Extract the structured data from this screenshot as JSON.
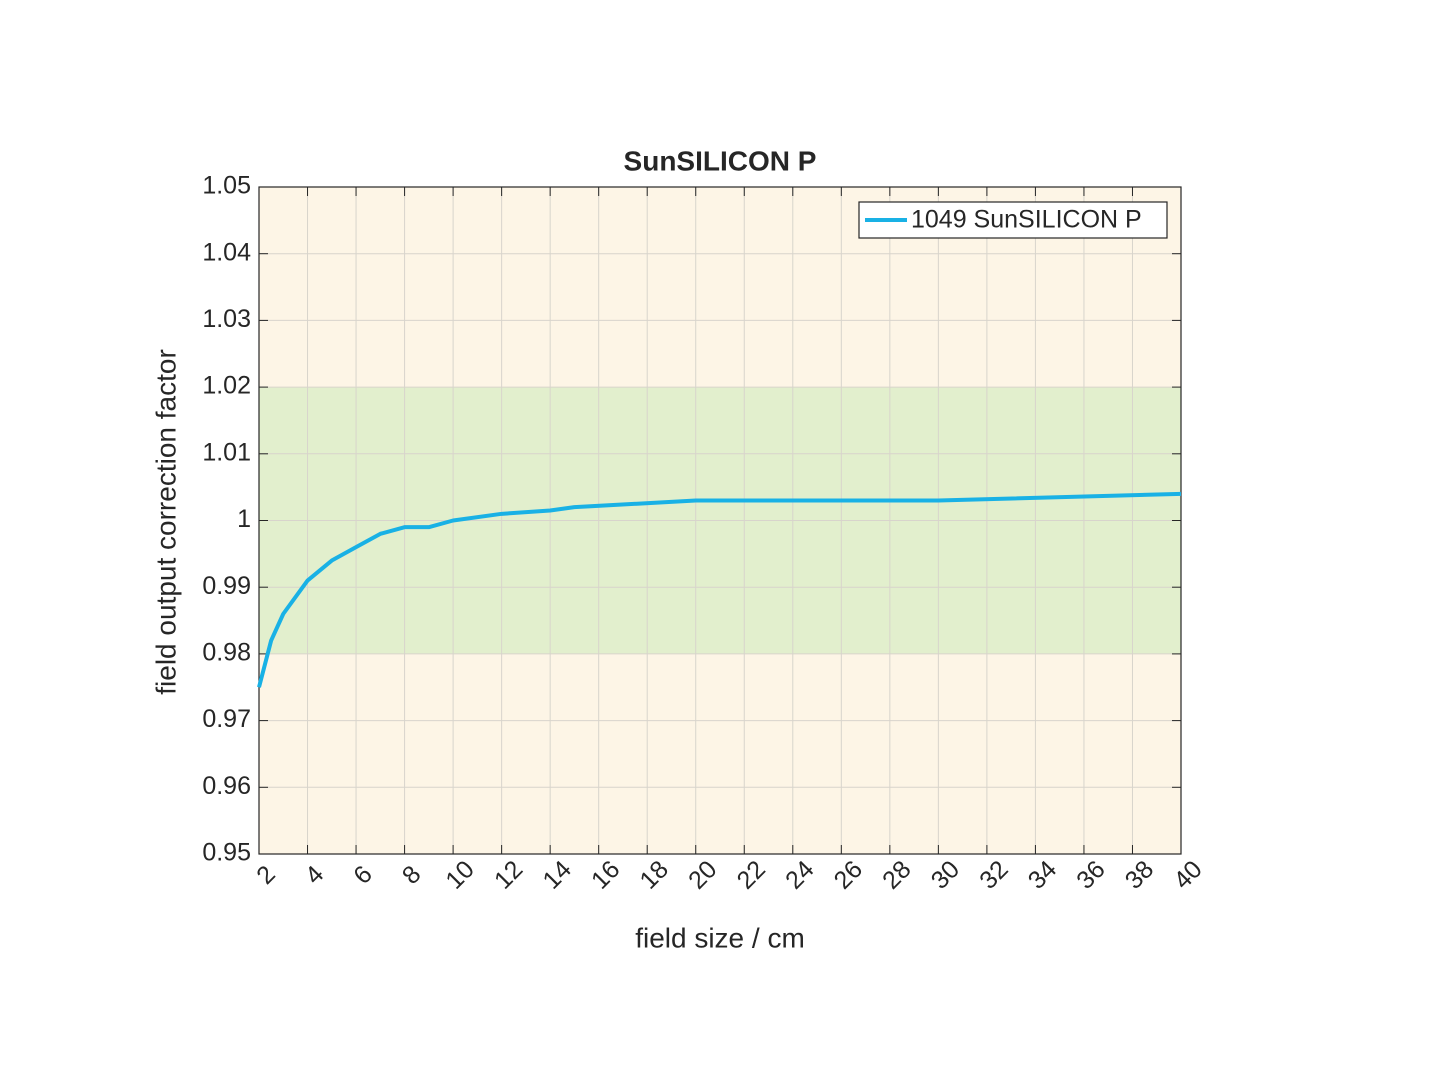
{
  "chart_data": {
    "type": "line",
    "title": "SunSILICON P",
    "xlabel": "field size / cm",
    "ylabel": "field output correction factor",
    "x": [
      2,
      2.5,
      3,
      4,
      5,
      6,
      7,
      8,
      9,
      10,
      12,
      14,
      15,
      20,
      30,
      40
    ],
    "series": [
      {
        "name": "1049 SunSILICON P",
        "color": "#19b1e5",
        "values": [
          0.975,
          0.982,
          0.986,
          0.991,
          0.994,
          0.996,
          0.998,
          0.999,
          0.999,
          1.0,
          1.001,
          1.0015,
          1.002,
          1.003,
          1.003,
          1.004
        ]
      }
    ],
    "xlim": [
      2,
      40
    ],
    "xticks": [
      2,
      4,
      6,
      8,
      10,
      12,
      14,
      16,
      18,
      20,
      22,
      24,
      26,
      28,
      30,
      32,
      34,
      36,
      38,
      40
    ],
    "ylim": [
      0.95,
      1.05
    ],
    "yticks": [
      0.95,
      0.96,
      0.97,
      0.98,
      0.99,
      1,
      1.01,
      1.02,
      1.03,
      1.04,
      1.05
    ],
    "shaded_range": [
      0.98,
      1.02
    ],
    "shaded_color": "#e2efcd",
    "background": "#fdf5e6",
    "grid": true,
    "legend": "northeast"
  }
}
